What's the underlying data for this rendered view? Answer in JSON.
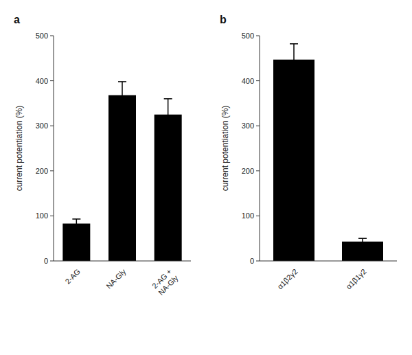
{
  "chart_data": [
    {
      "type": "bar",
      "title": "a",
      "categories": [
        "2-AG",
        "NA-Gly",
        "2-AG +\nNA-Gly"
      ],
      "values": [
        83,
        368,
        325
      ],
      "errors": [
        10,
        30,
        35
      ],
      "ylabel": "current potentiation (%)",
      "ylim": [
        0,
        500
      ],
      "yticks": [
        0,
        100,
        200,
        300,
        400,
        500
      ],
      "color": "#000000",
      "grid": false
    },
    {
      "type": "bar",
      "title": "b",
      "categories": [
        "α1β2γ2",
        "α1β1γ2"
      ],
      "values": [
        447,
        43
      ],
      "errors": [
        35,
        7
      ],
      "ylabel": "current potentiation (%)",
      "ylim": [
        0,
        500
      ],
      "yticks": [
        0,
        100,
        200,
        300,
        400,
        500
      ],
      "color": "#000000",
      "grid": false
    }
  ]
}
